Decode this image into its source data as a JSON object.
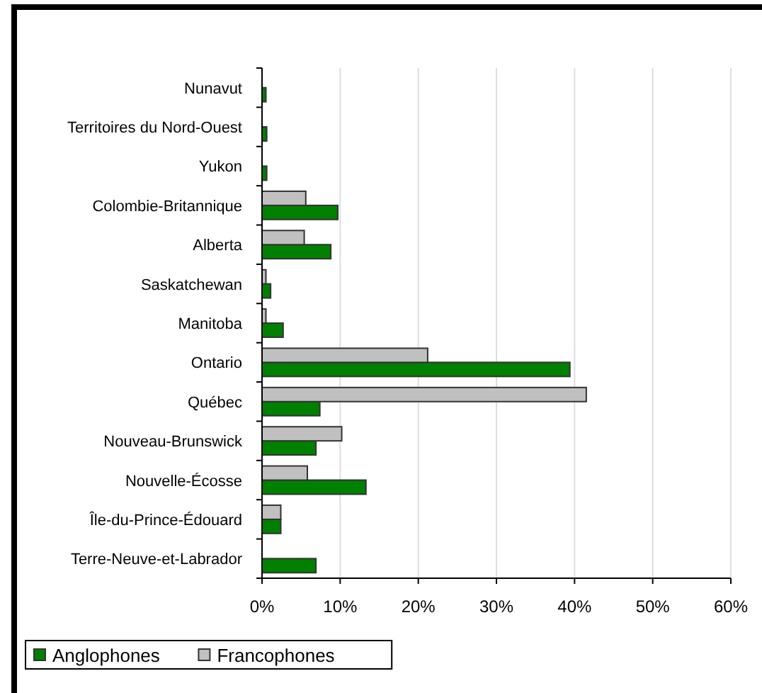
{
  "chart_data": {
    "type": "bar",
    "orientation": "horizontal",
    "categories": [
      "Nunavut",
      "Territoires du Nord-Ouest",
      "Yukon",
      "Colombie-Britannique",
      "Alberta",
      "Saskatchewan",
      "Manitoba",
      "Ontario",
      "Québec",
      "Nouveau-Brunswick",
      "Nouvelle-Écosse",
      "Île-du-Prince-Édouard",
      "Terre-Neuve-et-Labrador"
    ],
    "series": [
      {
        "name": "Anglophones",
        "color": "#008000",
        "values": [
          0.5,
          0.6,
          0.6,
          9.7,
          8.8,
          1.1,
          2.7,
          39.4,
          7.4,
          6.9,
          13.3,
          2.4,
          6.9
        ]
      },
      {
        "name": "Francophones",
        "color": "#c0c0c0",
        "values": [
          0,
          0,
          0,
          5.6,
          5.4,
          0.5,
          0.5,
          21.2,
          41.5,
          10.2,
          5.8,
          2.4,
          0
        ]
      }
    ],
    "xlim": [
      0,
      60
    ],
    "xticks": [
      {
        "value": 0,
        "label": "0%"
      },
      {
        "value": 10,
        "label": "10%"
      },
      {
        "value": 20,
        "label": "20%"
      },
      {
        "value": 30,
        "label": "30%"
      },
      {
        "value": 40,
        "label": "40%"
      },
      {
        "value": 50,
        "label": "50%"
      },
      {
        "value": 60,
        "label": "60%"
      }
    ],
    "grid": "x",
    "legend": "bottom left"
  }
}
